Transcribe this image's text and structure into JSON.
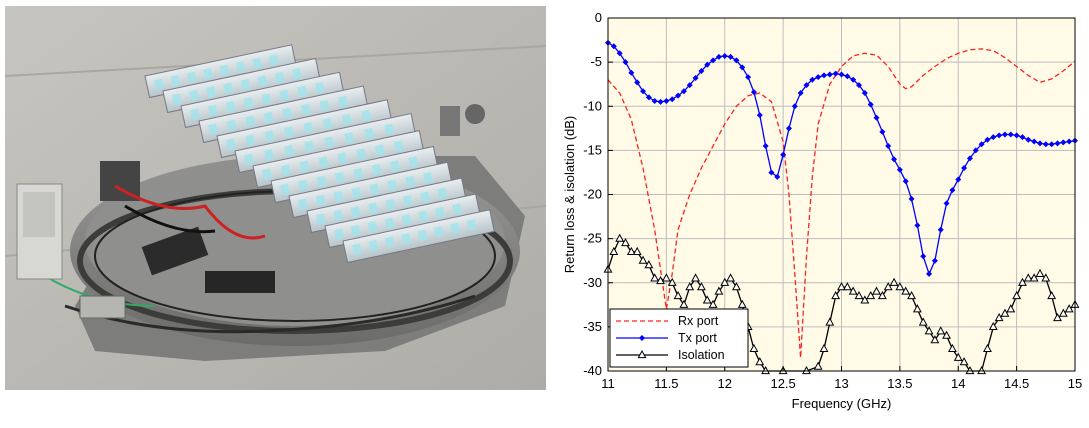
{
  "photo": {
    "description_icon": "antenna-array-photo"
  },
  "chart_data": {
    "type": "line",
    "xlabel": "Frequency (GHz)",
    "ylabel": "Return loss & isolation (dB)",
    "xlim": [
      11,
      15
    ],
    "ylim": [
      -40,
      0
    ],
    "xticks": [
      11,
      11.5,
      12,
      12.5,
      13,
      13.5,
      14,
      14.5,
      15
    ],
    "xtick_labels": [
      "11",
      "11.5",
      "12",
      "12.5",
      "13",
      "13.5",
      "14",
      "14.5",
      "15"
    ],
    "yticks": [
      0,
      -5,
      -10,
      -15,
      -20,
      -25,
      -30,
      -35,
      -40
    ],
    "ytick_labels": [
      "0",
      "-5",
      "-10",
      "-15",
      "-20",
      "-25",
      "-30",
      "-35",
      "-40"
    ],
    "grid": true,
    "legend_position": "bottom-left",
    "background_color": "#fffbe6",
    "series": [
      {
        "name": "Rx port",
        "color": "#ff2020",
        "style": "dashed",
        "marker": "none",
        "points": [
          [
            11.0,
            -7.0
          ],
          [
            11.1,
            -8.5
          ],
          [
            11.2,
            -11.5
          ],
          [
            11.3,
            -17.0
          ],
          [
            11.4,
            -24.0
          ],
          [
            11.45,
            -28.5
          ],
          [
            11.5,
            -33.0
          ],
          [
            11.55,
            -29.0
          ],
          [
            11.6,
            -24.0
          ],
          [
            11.7,
            -20.0
          ],
          [
            11.8,
            -17.0
          ],
          [
            11.9,
            -14.5
          ],
          [
            12.0,
            -12.0
          ],
          [
            12.1,
            -10.0
          ],
          [
            12.2,
            -8.8
          ],
          [
            12.3,
            -8.5
          ],
          [
            12.4,
            -9.5
          ],
          [
            12.5,
            -14.0
          ],
          [
            12.55,
            -20.0
          ],
          [
            12.6,
            -29.0
          ],
          [
            12.65,
            -38.5
          ],
          [
            12.7,
            -27.0
          ],
          [
            12.75,
            -18.0
          ],
          [
            12.8,
            -12.0
          ],
          [
            12.9,
            -7.5
          ],
          [
            13.0,
            -5.5
          ],
          [
            13.1,
            -4.3
          ],
          [
            13.2,
            -4.0
          ],
          [
            13.3,
            -4.2
          ],
          [
            13.4,
            -5.5
          ],
          [
            13.5,
            -7.5
          ],
          [
            13.55,
            -8.0
          ],
          [
            13.6,
            -7.8
          ],
          [
            13.7,
            -6.5
          ],
          [
            13.8,
            -5.5
          ],
          [
            13.9,
            -4.6
          ],
          [
            14.0,
            -4.0
          ],
          [
            14.1,
            -3.6
          ],
          [
            14.2,
            -3.5
          ],
          [
            14.3,
            -3.7
          ],
          [
            14.4,
            -4.5
          ],
          [
            14.5,
            -5.5
          ],
          [
            14.6,
            -6.5
          ],
          [
            14.7,
            -7.3
          ],
          [
            14.8,
            -6.9
          ],
          [
            14.9,
            -6.0
          ],
          [
            15.0,
            -4.9
          ]
        ]
      },
      {
        "name": "Tx port",
        "color": "#0000ff",
        "style": "solid",
        "marker": "diamond",
        "points": [
          [
            11.0,
            -2.8
          ],
          [
            11.05,
            -3.2
          ],
          [
            11.1,
            -4.0
          ],
          [
            11.15,
            -5.0
          ],
          [
            11.2,
            -6.2
          ],
          [
            11.25,
            -7.3
          ],
          [
            11.3,
            -8.3
          ],
          [
            11.35,
            -9.0
          ],
          [
            11.4,
            -9.4
          ],
          [
            11.45,
            -9.5
          ],
          [
            11.5,
            -9.4
          ],
          [
            11.55,
            -9.2
          ],
          [
            11.6,
            -8.8
          ],
          [
            11.65,
            -8.3
          ],
          [
            11.7,
            -7.6
          ],
          [
            11.75,
            -6.8
          ],
          [
            11.8,
            -6.0
          ],
          [
            11.85,
            -5.3
          ],
          [
            11.9,
            -4.8
          ],
          [
            11.95,
            -4.4
          ],
          [
            12.0,
            -4.3
          ],
          [
            12.05,
            -4.4
          ],
          [
            12.1,
            -4.8
          ],
          [
            12.15,
            -5.6
          ],
          [
            12.2,
            -6.7
          ],
          [
            12.25,
            -8.4
          ],
          [
            12.3,
            -11.0
          ],
          [
            12.35,
            -14.5
          ],
          [
            12.4,
            -17.5
          ],
          [
            12.45,
            -18.0
          ],
          [
            12.5,
            -15.5
          ],
          [
            12.55,
            -12.5
          ],
          [
            12.6,
            -10.0
          ],
          [
            12.65,
            -8.5
          ],
          [
            12.7,
            -7.6
          ],
          [
            12.75,
            -7.0
          ],
          [
            12.8,
            -6.7
          ],
          [
            12.85,
            -6.5
          ],
          [
            12.9,
            -6.4
          ],
          [
            12.95,
            -6.3
          ],
          [
            13.0,
            -6.4
          ],
          [
            13.05,
            -6.6
          ],
          [
            13.1,
            -7.0
          ],
          [
            13.15,
            -7.6
          ],
          [
            13.2,
            -8.5
          ],
          [
            13.25,
            -9.8
          ],
          [
            13.3,
            -11.3
          ],
          [
            13.35,
            -12.9
          ],
          [
            13.4,
            -14.5
          ],
          [
            13.45,
            -16.0
          ],
          [
            13.5,
            -17.2
          ],
          [
            13.55,
            -18.5
          ],
          [
            13.6,
            -20.5
          ],
          [
            13.65,
            -23.5
          ],
          [
            13.7,
            -27.0
          ],
          [
            13.75,
            -29.0
          ],
          [
            13.8,
            -27.5
          ],
          [
            13.85,
            -24.0
          ],
          [
            13.9,
            -21.0
          ],
          [
            13.95,
            -19.5
          ],
          [
            14.0,
            -18.3
          ],
          [
            14.05,
            -17.0
          ],
          [
            14.1,
            -15.9
          ],
          [
            14.15,
            -15.0
          ],
          [
            14.2,
            -14.3
          ],
          [
            14.25,
            -13.8
          ],
          [
            14.3,
            -13.5
          ],
          [
            14.35,
            -13.3
          ],
          [
            14.4,
            -13.2
          ],
          [
            14.45,
            -13.2
          ],
          [
            14.5,
            -13.3
          ],
          [
            14.55,
            -13.5
          ],
          [
            14.6,
            -13.8
          ],
          [
            14.65,
            -14.0
          ],
          [
            14.7,
            -14.2
          ],
          [
            14.75,
            -14.3
          ],
          [
            14.8,
            -14.3
          ],
          [
            14.85,
            -14.2
          ],
          [
            14.9,
            -14.1
          ],
          [
            14.95,
            -14.0
          ],
          [
            15.0,
            -13.9
          ]
        ]
      },
      {
        "name": "Isolation",
        "color": "#000000",
        "style": "solid",
        "marker": "triangle",
        "points": [
          [
            11.0,
            -28.5
          ],
          [
            11.05,
            -26.5
          ],
          [
            11.1,
            -25.0
          ],
          [
            11.15,
            -25.5
          ],
          [
            11.2,
            -26.5
          ],
          [
            11.25,
            -26.5
          ],
          [
            11.3,
            -27.5
          ],
          [
            11.35,
            -28.0
          ],
          [
            11.4,
            -29.5
          ],
          [
            11.45,
            -29.8
          ],
          [
            11.5,
            -29.5
          ],
          [
            11.55,
            -30.0
          ],
          [
            11.6,
            -31.5
          ],
          [
            11.65,
            -32.5
          ],
          [
            11.7,
            -30.5
          ],
          [
            11.75,
            -29.5
          ],
          [
            11.8,
            -30.5
          ],
          [
            11.85,
            -32.0
          ],
          [
            11.9,
            -32.5
          ],
          [
            11.95,
            -31.0
          ],
          [
            12.0,
            -30.0
          ],
          [
            12.05,
            -29.5
          ],
          [
            12.1,
            -30.5
          ],
          [
            12.15,
            -32.5
          ],
          [
            12.2,
            -35.0
          ],
          [
            12.25,
            -37.5
          ],
          [
            12.3,
            -39.0
          ],
          [
            12.35,
            -40.0
          ],
          [
            12.5,
            -40.0
          ],
          [
            12.7,
            -40.0
          ],
          [
            12.8,
            -39.5
          ],
          [
            12.85,
            -37.5
          ],
          [
            12.9,
            -34.5
          ],
          [
            12.95,
            -31.5
          ],
          [
            13.0,
            -30.5
          ],
          [
            13.05,
            -30.5
          ],
          [
            13.1,
            -31.0
          ],
          [
            13.15,
            -31.5
          ],
          [
            13.2,
            -32.0
          ],
          [
            13.25,
            -31.5
          ],
          [
            13.3,
            -31.0
          ],
          [
            13.35,
            -31.5
          ],
          [
            13.4,
            -30.5
          ],
          [
            13.45,
            -30.0
          ],
          [
            13.5,
            -30.5
          ],
          [
            13.55,
            -31.0
          ],
          [
            13.6,
            -31.5
          ],
          [
            13.65,
            -33.0
          ],
          [
            13.7,
            -34.5
          ],
          [
            13.75,
            -35.5
          ],
          [
            13.8,
            -36.5
          ],
          [
            13.85,
            -35.5
          ],
          [
            13.9,
            -36.0
          ],
          [
            13.95,
            -37.5
          ],
          [
            14.0,
            -38.5
          ],
          [
            14.05,
            -39.0
          ],
          [
            14.1,
            -40.0
          ],
          [
            14.2,
            -40.0
          ],
          [
            14.25,
            -37.5
          ],
          [
            14.3,
            -35.0
          ],
          [
            14.35,
            -34.0
          ],
          [
            14.4,
            -33.5
          ],
          [
            14.45,
            -33.0
          ],
          [
            14.5,
            -31.5
          ],
          [
            14.55,
            -30.0
          ],
          [
            14.6,
            -29.5
          ],
          [
            14.65,
            -29.5
          ],
          [
            14.7,
            -29.0
          ],
          [
            14.75,
            -29.5
          ],
          [
            14.8,
            -31.5
          ],
          [
            14.85,
            -34.0
          ],
          [
            14.9,
            -33.5
          ],
          [
            14.95,
            -33.0
          ],
          [
            15.0,
            -32.5
          ]
        ]
      }
    ]
  }
}
